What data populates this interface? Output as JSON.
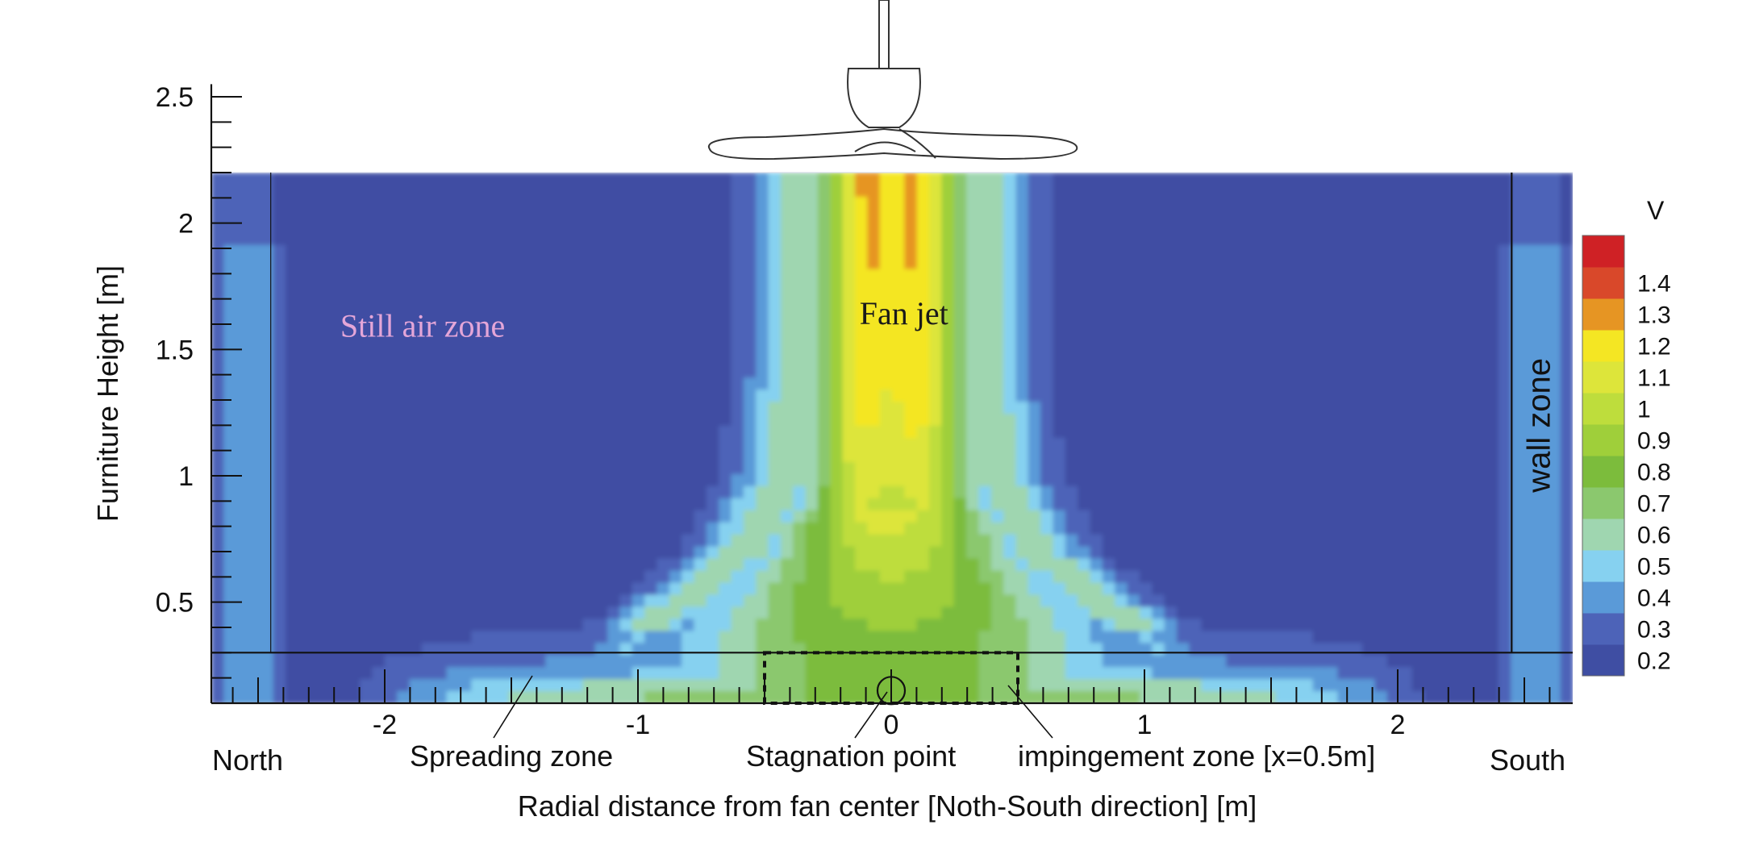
{
  "chart_data": {
    "type": "heatmap",
    "title": "",
    "xlabel": "Radial distance from fan center [Noth-South direction] [m]",
    "ylabel": "Furniture Height [m]",
    "xlim": [
      -2.7,
      2.7
    ],
    "ylim": [
      0.1,
      2.6
    ],
    "x_ticks": [
      -2,
      -1,
      0,
      1,
      2
    ],
    "x_tick_labels": [
      "-2",
      "-1",
      "0",
      "1",
      "2"
    ],
    "y_ticks": [
      0.5,
      1,
      1.5,
      2,
      2.5
    ],
    "y_tick_labels": [
      "0.5",
      "1",
      "1.5",
      "2",
      "2.5"
    ],
    "grid": false,
    "colorbar": {
      "title": "V",
      "levels": [
        0.2,
        0.3,
        0.4,
        0.5,
        0.6,
        0.7,
        0.8,
        0.9,
        1.0,
        1.1,
        1.2,
        1.3,
        1.4
      ],
      "labels": [
        "0.2",
        "0.3",
        "0.4",
        "0.5",
        "0.6",
        "0.7",
        "0.8",
        "0.9",
        "1",
        "1.1",
        "1.2",
        "1.3",
        "1.4"
      ],
      "colors": [
        "#3f4ea3",
        "#4d63b8",
        "#5a9ad8",
        "#86d1f0",
        "#9fd6b0",
        "#8bc86e",
        "#7cbc3c",
        "#9fcf3a",
        "#bedd3c",
        "#dde53a",
        "#f4e623",
        "#e69523",
        "#d9482a",
        "#cf2125"
      ]
    },
    "field_model": {
      "ambient_speed": 0.25,
      "jet_core": [
        {
          "y": 2.2,
          "core_speed": 1.45,
          "half_width": 0.3
        },
        {
          "y": 1.5,
          "core_speed": 1.4,
          "half_width": 0.3
        },
        {
          "y": 1.0,
          "core_speed": 1.25,
          "half_width": 0.35
        },
        {
          "y": 0.7,
          "core_speed": 1.05,
          "half_width": 0.48
        },
        {
          "y": 0.3,
          "core_speed": 0.85,
          "half_width": 0.9
        }
      ],
      "floor_layer": {
        "top_y": 0.3,
        "speed": 0.72,
        "extent_x": 2.15
      },
      "wall_layer": {
        "x": 2.55,
        "speed": 0.5
      }
    },
    "annotations": [
      {
        "text": "Still air zone",
        "x": -1.85,
        "y": 1.55
      },
      {
        "text": "Fan jet",
        "x": 0.05,
        "y": 1.6
      },
      {
        "text": "wall zone",
        "x": 2.6,
        "y": 1.2
      },
      {
        "text": "North",
        "x": -2.55,
        "y": -0.1
      },
      {
        "text": "South",
        "x": 2.55,
        "y": -0.1
      },
      {
        "text": "Spreading zone",
        "x": -1.5,
        "y": -0.1
      },
      {
        "text": "Stagnation point",
        "x": -0.1,
        "y": -0.1
      },
      {
        "text": "impingement zone [x=0.5m]",
        "x": 1.05,
        "y": -0.1
      }
    ],
    "impingement_zone": {
      "x": [
        -0.5,
        0.5
      ],
      "y": [
        0.1,
        0.3
      ]
    },
    "stagnation_point": {
      "x": 0,
      "y": 0.15
    },
    "floor_line_y": 0.3,
    "wall_line_x": 2.45,
    "north_line_x": -2.45
  }
}
